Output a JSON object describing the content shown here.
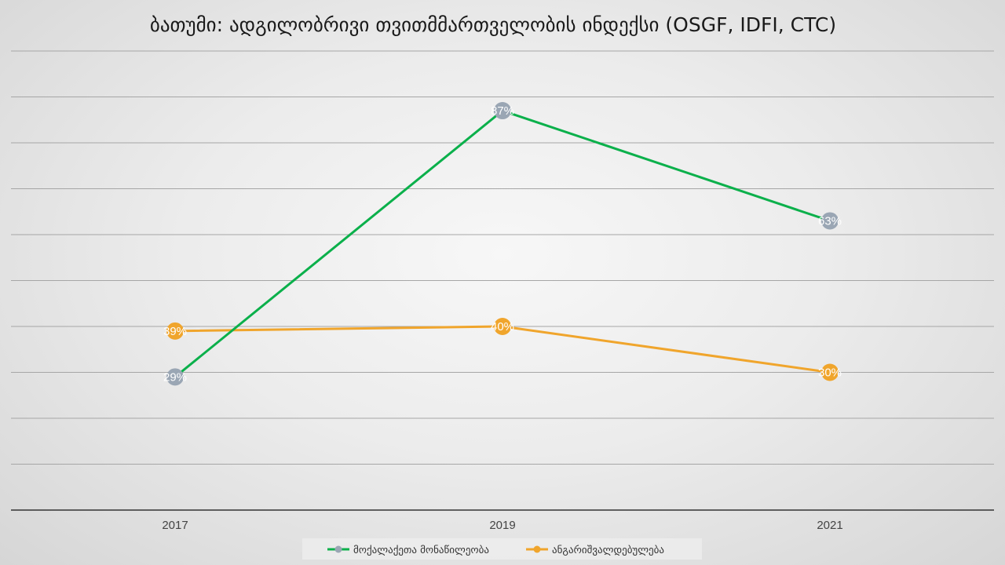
{
  "chart_data": {
    "type": "line",
    "title": "ბათუმი: ადგილობრივი თვითმმართველობის ინდექსი (OSGF, IDFI, CTC)",
    "categories": [
      "2017",
      "2019",
      "2021"
    ],
    "ylim": [
      0,
      100
    ],
    "grid": true,
    "legend_position": "bottom",
    "series": [
      {
        "name": "მოქალაქეთა მონაწილეობა",
        "values": [
          29,
          87,
          63
        ],
        "labels": [
          "29%",
          "87%",
          "63%"
        ],
        "line_color": "#0bb04b",
        "marker_color": "#9aa6b4"
      },
      {
        "name": "ანგარიშვალდებულება",
        "values": [
          39,
          40,
          30
        ],
        "labels": [
          "39%",
          "40%",
          "30%"
        ],
        "line_color": "#f0a52c",
        "marker_color": "#f0a52c"
      }
    ]
  }
}
